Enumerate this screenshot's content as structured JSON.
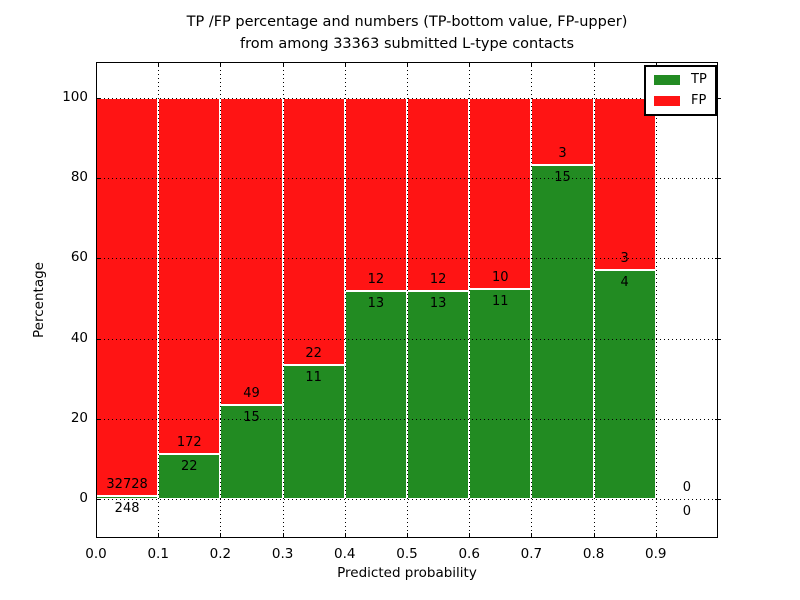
{
  "figure": {
    "title_line1": "TP /FP percentage and numbers (TP-bottom value, FP-upper)",
    "title_line2": "from among 33363 submitted L-type contacts"
  },
  "chart_data": {
    "type": "bar",
    "stacked": true,
    "title": "TP /FP percentage and numbers (TP-bottom value, FP-upper)\nfrom among 33363 submitted L-type contacts",
    "xlabel": "Predicted probability",
    "ylabel": "Percentage",
    "total_contacts": 33363,
    "xlim": [
      0,
      1.0
    ],
    "ylim": [
      -9.7,
      109.0
    ],
    "xticks": [
      "0.0",
      "0.1",
      "0.2",
      "0.3",
      "0.4",
      "0.5",
      "0.6",
      "0.7",
      "0.8",
      "0.9"
    ],
    "yticks": [
      0,
      20,
      40,
      60,
      80,
      100
    ],
    "grid": true,
    "grid_style": "dotted",
    "bin_edges": [
      0.0,
      0.1,
      0.2,
      0.3,
      0.4,
      0.5,
      0.6,
      0.7,
      0.8,
      0.9,
      1.0
    ],
    "series": [
      {
        "name": "TP",
        "color": "#228b22",
        "counts": [
          248,
          22,
          15,
          11,
          13,
          13,
          11,
          15,
          4,
          0
        ]
      },
      {
        "name": "FP",
        "color": "#ff1414",
        "counts": [
          32728,
          172,
          49,
          22,
          12,
          12,
          10,
          3,
          3,
          0
        ]
      }
    ],
    "tp_percent": [
      0.75,
      11.34,
      23.44,
      33.33,
      52.0,
      52.0,
      52.38,
      83.33,
      57.14,
      0
    ],
    "bar_total_percent": 100,
    "bar_edge_color": "#ffffff",
    "legend": {
      "position": "upper right",
      "entries": [
        {
          "label": "TP",
          "color": "#228b22"
        },
        {
          "label": "FP",
          "color": "#ff1414"
        }
      ]
    }
  }
}
